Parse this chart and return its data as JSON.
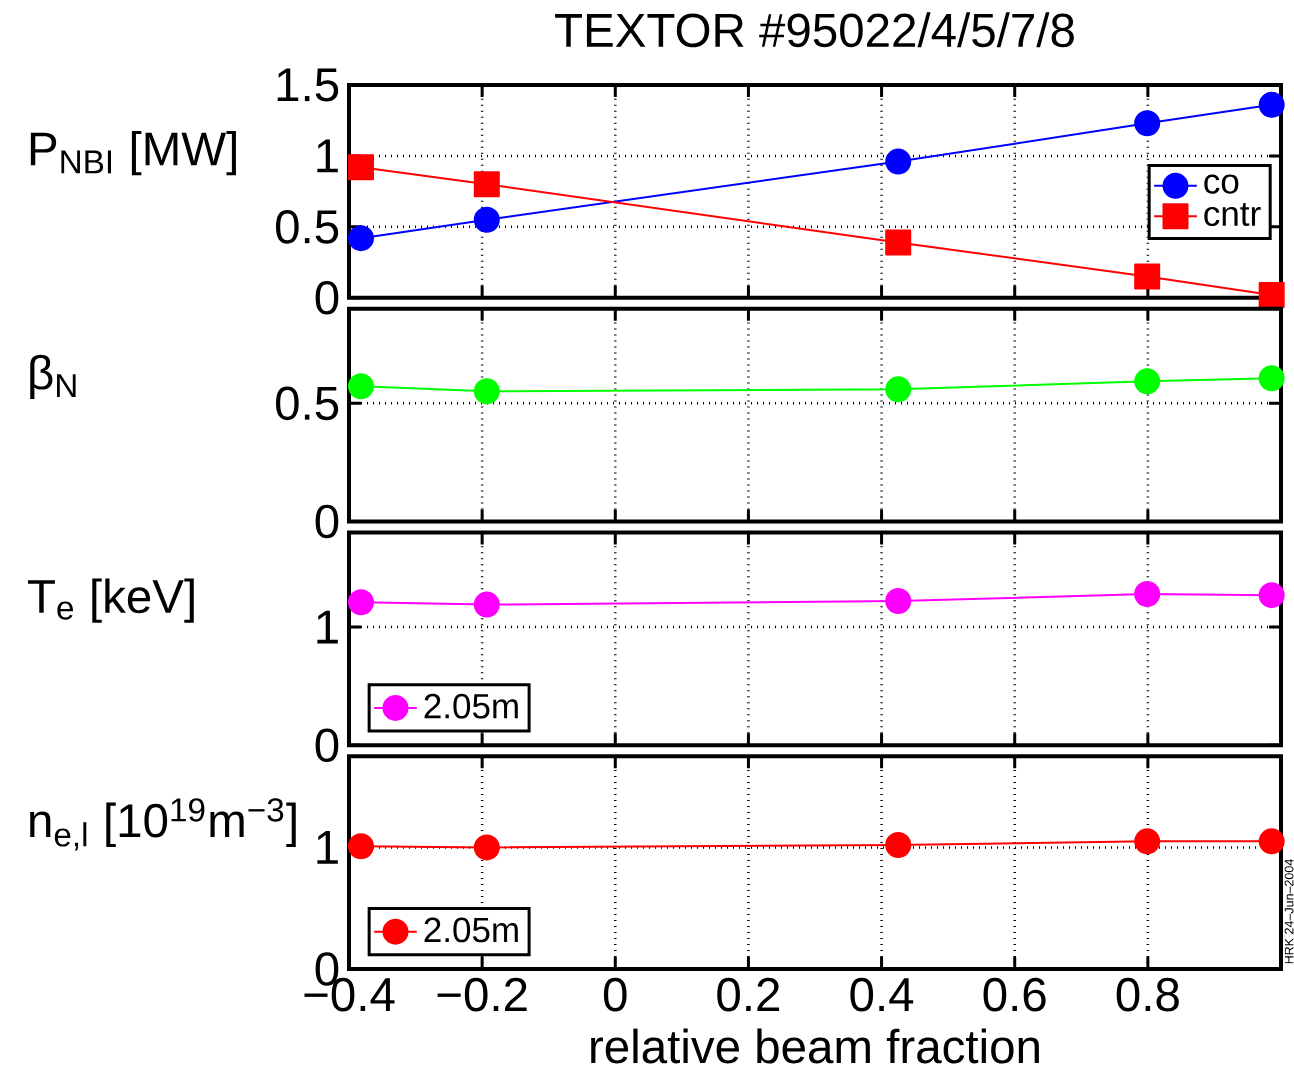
{
  "chart_data": [
    {
      "type": "line",
      "title": "TEXTOR #95022/4/5/7/8",
      "ylabel": "P$_{NBI}$ [MW]",
      "x": [
        -0.382,
        -0.193,
        0.425,
        0.799,
        0.986
      ],
      "series": [
        {
          "name": "co",
          "color": "#0000ff",
          "marker": "circle",
          "values": [
            0.42,
            0.55,
            0.96,
            1.23,
            1.36
          ]
        },
        {
          "name": "cntr",
          "color": "#ff0000",
          "marker": "square",
          "values": [
            0.92,
            0.8,
            0.39,
            0.15,
            0.02
          ]
        }
      ],
      "xlim": [
        -0.4,
        1.0
      ],
      "ylim": [
        0,
        1.5
      ],
      "yticks": [
        0,
        0.5,
        1,
        1.5
      ],
      "grid": true,
      "legend": "right",
      "tick_labels": "y"
    },
    {
      "type": "line",
      "ylabel": "β$_{N}$",
      "x": [
        -0.382,
        -0.193,
        0.425,
        0.799,
        0.986
      ],
      "series": [
        {
          "color": "#00ff00",
          "marker": "circle",
          "values": [
            0.572,
            0.551,
            0.559,
            0.593,
            0.606
          ]
        }
      ],
      "xlim": [
        -0.4,
        1.0
      ],
      "ylim": [
        0,
        0.9
      ],
      "yticks": [
        0,
        0.5
      ],
      "grid": true,
      "legend": false,
      "tick_labels": "y"
    },
    {
      "type": "line",
      "ylabel": "T$_{e}$ [keV]",
      "x": [
        -0.382,
        -0.193,
        0.425,
        0.799,
        0.986
      ],
      "series": [
        {
          "name": "2.05m",
          "color": "#ff00ff",
          "marker": "circle",
          "values": [
            1.21,
            1.19,
            1.22,
            1.28,
            1.27
          ]
        }
      ],
      "xlim": [
        -0.4,
        1.0
      ],
      "ylim": [
        0,
        1.8
      ],
      "yticks": [
        0,
        1
      ],
      "grid": true,
      "legend": "bottom left",
      "tick_labels": "y"
    },
    {
      "type": "line",
      "ylabel": "n$_{e,l}$ [10$^{19}$m$^{−3}$]",
      "xlabel": "relative beam fraction",
      "x": [
        -0.382,
        -0.193,
        0.425,
        0.799,
        0.986
      ],
      "series": [
        {
          "name": "2.05m",
          "color": "#ff0000",
          "marker": "circle",
          "values": [
            1.01,
            1.0,
            1.02,
            1.05,
            1.05
          ]
        }
      ],
      "xlim": [
        -0.4,
        1.0
      ],
      "xticks": [
        {
          "value": -0.4,
          "label": "−0.4"
        },
        {
          "value": -0.2,
          "label": "−0.2"
        },
        0,
        0.2,
        0.4,
        0.6,
        0.8
      ],
      "ylim": [
        0,
        1.75
      ],
      "yticks": [
        0,
        1
      ],
      "grid": true,
      "legend": "bottom left",
      "annotations": [
        "HRK 24–Jun–2004"
      ]
    }
  ]
}
